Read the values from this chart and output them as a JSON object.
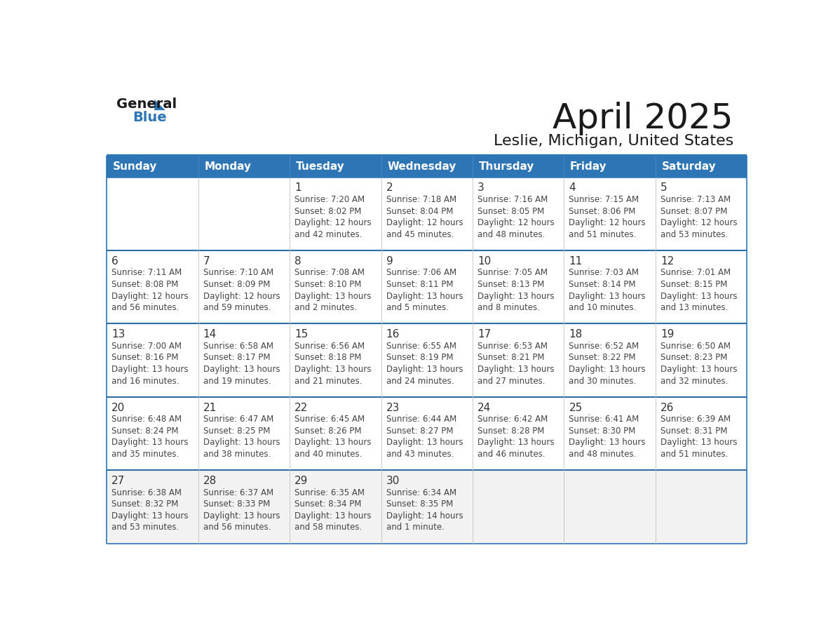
{
  "title": "April 2025",
  "subtitle": "Leslie, Michigan, United States",
  "header_bg": "#2E75B6",
  "header_text_color": "#FFFFFF",
  "day_names": [
    "Sunday",
    "Monday",
    "Tuesday",
    "Wednesday",
    "Thursday",
    "Friday",
    "Saturday"
  ],
  "cell_bg": "#FFFFFF",
  "cell_bg_last_row": "#F2F2F2",
  "border_color": "#2E75B6",
  "row_sep_color": "#2E6DA4",
  "col_sep_color": "#C0C0C0",
  "date_text_color": "#333333",
  "info_text_color": "#444444",
  "calendar": [
    [
      {
        "day": "",
        "sunrise": "",
        "sunset": "",
        "daylight": ""
      },
      {
        "day": "",
        "sunrise": "",
        "sunset": "",
        "daylight": ""
      },
      {
        "day": "1",
        "sunrise": "7:20 AM",
        "sunset": "8:02 PM",
        "daylight": "12 hours and 42 minutes."
      },
      {
        "day": "2",
        "sunrise": "7:18 AM",
        "sunset": "8:04 PM",
        "daylight": "12 hours and 45 minutes."
      },
      {
        "day": "3",
        "sunrise": "7:16 AM",
        "sunset": "8:05 PM",
        "daylight": "12 hours and 48 minutes."
      },
      {
        "day": "4",
        "sunrise": "7:15 AM",
        "sunset": "8:06 PM",
        "daylight": "12 hours and 51 minutes."
      },
      {
        "day": "5",
        "sunrise": "7:13 AM",
        "sunset": "8:07 PM",
        "daylight": "12 hours and 53 minutes."
      }
    ],
    [
      {
        "day": "6",
        "sunrise": "7:11 AM",
        "sunset": "8:08 PM",
        "daylight": "12 hours and 56 minutes."
      },
      {
        "day": "7",
        "sunrise": "7:10 AM",
        "sunset": "8:09 PM",
        "daylight": "12 hours and 59 minutes."
      },
      {
        "day": "8",
        "sunrise": "7:08 AM",
        "sunset": "8:10 PM",
        "daylight": "13 hours and 2 minutes."
      },
      {
        "day": "9",
        "sunrise": "7:06 AM",
        "sunset": "8:11 PM",
        "daylight": "13 hours and 5 minutes."
      },
      {
        "day": "10",
        "sunrise": "7:05 AM",
        "sunset": "8:13 PM",
        "daylight": "13 hours and 8 minutes."
      },
      {
        "day": "11",
        "sunrise": "7:03 AM",
        "sunset": "8:14 PM",
        "daylight": "13 hours and 10 minutes."
      },
      {
        "day": "12",
        "sunrise": "7:01 AM",
        "sunset": "8:15 PM",
        "daylight": "13 hours and 13 minutes."
      }
    ],
    [
      {
        "day": "13",
        "sunrise": "7:00 AM",
        "sunset": "8:16 PM",
        "daylight": "13 hours and 16 minutes."
      },
      {
        "day": "14",
        "sunrise": "6:58 AM",
        "sunset": "8:17 PM",
        "daylight": "13 hours and 19 minutes."
      },
      {
        "day": "15",
        "sunrise": "6:56 AM",
        "sunset": "8:18 PM",
        "daylight": "13 hours and 21 minutes."
      },
      {
        "day": "16",
        "sunrise": "6:55 AM",
        "sunset": "8:19 PM",
        "daylight": "13 hours and 24 minutes."
      },
      {
        "day": "17",
        "sunrise": "6:53 AM",
        "sunset": "8:21 PM",
        "daylight": "13 hours and 27 minutes."
      },
      {
        "day": "18",
        "sunrise": "6:52 AM",
        "sunset": "8:22 PM",
        "daylight": "13 hours and 30 minutes."
      },
      {
        "day": "19",
        "sunrise": "6:50 AM",
        "sunset": "8:23 PM",
        "daylight": "13 hours and 32 minutes."
      }
    ],
    [
      {
        "day": "20",
        "sunrise": "6:48 AM",
        "sunset": "8:24 PM",
        "daylight": "13 hours and 35 minutes."
      },
      {
        "day": "21",
        "sunrise": "6:47 AM",
        "sunset": "8:25 PM",
        "daylight": "13 hours and 38 minutes."
      },
      {
        "day": "22",
        "sunrise": "6:45 AM",
        "sunset": "8:26 PM",
        "daylight": "13 hours and 40 minutes."
      },
      {
        "day": "23",
        "sunrise": "6:44 AM",
        "sunset": "8:27 PM",
        "daylight": "13 hours and 43 minutes."
      },
      {
        "day": "24",
        "sunrise": "6:42 AM",
        "sunset": "8:28 PM",
        "daylight": "13 hours and 46 minutes."
      },
      {
        "day": "25",
        "sunrise": "6:41 AM",
        "sunset": "8:30 PM",
        "daylight": "13 hours and 48 minutes."
      },
      {
        "day": "26",
        "sunrise": "6:39 AM",
        "sunset": "8:31 PM",
        "daylight": "13 hours and 51 minutes."
      }
    ],
    [
      {
        "day": "27",
        "sunrise": "6:38 AM",
        "sunset": "8:32 PM",
        "daylight": "13 hours and 53 minutes."
      },
      {
        "day": "28",
        "sunrise": "6:37 AM",
        "sunset": "8:33 PM",
        "daylight": "13 hours and 56 minutes."
      },
      {
        "day": "29",
        "sunrise": "6:35 AM",
        "sunset": "8:34 PM",
        "daylight": "13 hours and 58 minutes."
      },
      {
        "day": "30",
        "sunrise": "6:34 AM",
        "sunset": "8:35 PM",
        "daylight": "14 hours and 1 minute."
      },
      {
        "day": "",
        "sunrise": "",
        "sunset": "",
        "daylight": ""
      },
      {
        "day": "",
        "sunrise": "",
        "sunset": "",
        "daylight": ""
      },
      {
        "day": "",
        "sunrise": "",
        "sunset": "",
        "daylight": ""
      }
    ]
  ],
  "logo_text1": "General",
  "logo_text2": "Blue",
  "logo_triangle_color": "#2E75B6",
  "logo_text1_color": "#1a1a1a",
  "title_fontsize": 36,
  "subtitle_fontsize": 16,
  "header_fontsize": 11,
  "day_num_fontsize": 11,
  "cell_text_fontsize": 8.5
}
